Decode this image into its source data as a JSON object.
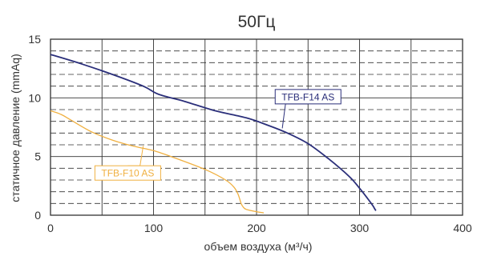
{
  "chart_data": {
    "type": "line",
    "title": "50Гц",
    "xlabel": "объем воздуха (м³/ч)",
    "ylabel": "статичное давление (mmAq)",
    "xlim": [
      0,
      400
    ],
    "ylim": [
      0,
      15
    ],
    "xticks": [
      0,
      100,
      200,
      300,
      400
    ],
    "yticks": [
      0,
      5,
      10,
      15
    ],
    "grid": true,
    "series": [
      {
        "name": "TFB-F14 AS",
        "color": "#2b2f7a",
        "x": [
          0,
          30,
          60,
          90,
          105,
          130,
          160,
          190,
          210,
          230,
          250,
          270,
          290,
          300,
          308,
          313,
          315,
          316
        ],
        "y": [
          13.7,
          12.9,
          12.0,
          11.0,
          10.3,
          9.7,
          8.9,
          8.3,
          7.7,
          7.0,
          6.1,
          4.8,
          3.3,
          2.3,
          1.4,
          0.8,
          0.5,
          0.4
        ]
      },
      {
        "name": "TFB-F10 AS",
        "color": "#f0b040",
        "x": [
          0,
          10,
          20,
          40,
          60,
          80,
          100,
          120,
          150,
          170,
          178,
          182,
          185,
          187,
          190,
          200,
          207
        ],
        "y": [
          8.9,
          8.6,
          8.1,
          7.1,
          6.4,
          5.9,
          5.5,
          4.9,
          3.9,
          3.0,
          2.4,
          1.8,
          1.0,
          0.7,
          0.5,
          0.3,
          0.2
        ]
      }
    ],
    "annotations": [
      {
        "text": "TFB-F14 AS",
        "series": 0,
        "at_x": 225,
        "at_y": 7.4,
        "label_x": 250,
        "label_y": 10.1
      },
      {
        "text": "TFB-F10 AS",
        "series": 1,
        "at_x": 90,
        "at_y": 5.9,
        "label_x": 75,
        "label_y": 3.6
      }
    ]
  }
}
